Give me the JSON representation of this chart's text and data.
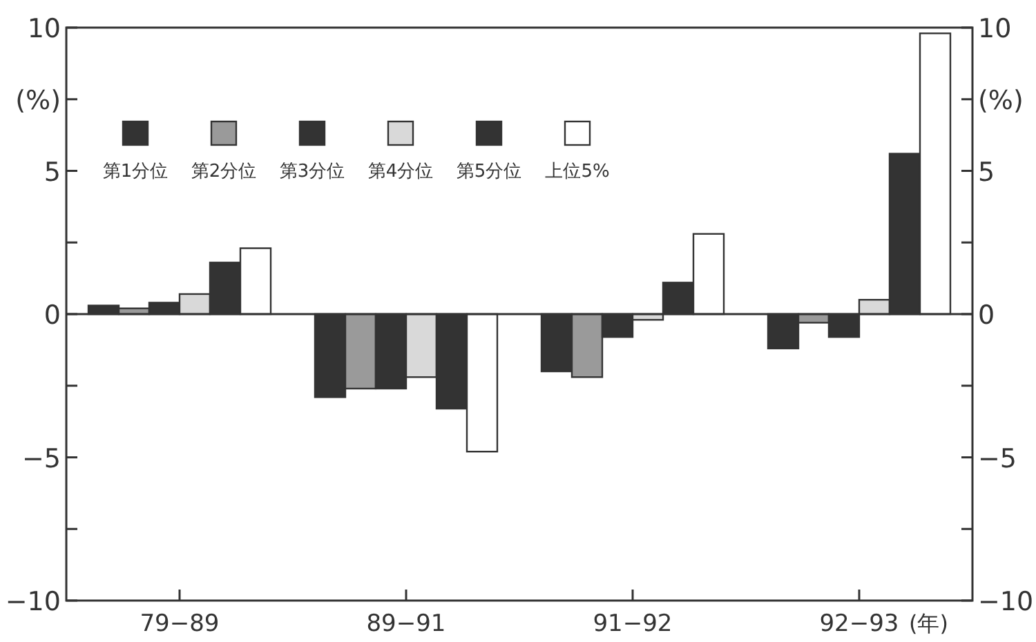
{
  "chart_data": {
    "type": "bar",
    "categories": [
      "79−89",
      "89−91",
      "91−92",
      "92−93"
    ],
    "xlabel": "(年)",
    "series": [
      {
        "name": "第1分位",
        "color": "#333333",
        "values": [
          0.3,
          -2.9,
          -2.0,
          -1.2
        ]
      },
      {
        "name": "第2分位",
        "color": "#9a9a9a",
        "values": [
          0.2,
          -2.6,
          -2.2,
          -0.3
        ]
      },
      {
        "name": "第3分位",
        "color": "#333333",
        "values": [
          0.4,
          -2.6,
          -0.8,
          -0.8
        ]
      },
      {
        "name": "第4分位",
        "color": "#d9d9d9",
        "values": [
          0.7,
          -2.2,
          -0.2,
          0.5
        ]
      },
      {
        "name": "第5分位",
        "color": "#333333",
        "values": [
          1.8,
          -3.3,
          1.1,
          5.6
        ]
      },
      {
        "name": "上位5%",
        "color": "#ffffff",
        "values": [
          2.3,
          -4.8,
          2.8,
          9.8
        ]
      }
    ],
    "ylim": [
      -10,
      10
    ],
    "yticks": [
      10,
      {
        "value": 7.5,
        "label": "(%)"
      },
      5,
      {
        "value": 2.5,
        "label": null
      },
      0,
      {
        "value": -2.5,
        "label": null
      },
      -5,
      {
        "value": -7.5,
        "label": null
      },
      -10
    ],
    "y2lim": [
      -10,
      10
    ],
    "y2ticks": [
      10,
      {
        "value": 7.5,
        "label": "(%)"
      },
      5,
      {
        "value": 2.5,
        "label": null
      },
      0,
      {
        "value": -2.5,
        "label": null
      },
      -5,
      {
        "value": -7.5,
        "label": null
      },
      -10
    ],
    "ref_lines": [
      {
        "axis": "y",
        "value": 0,
        "color": "#333333"
      }
    ],
    "legend": "top left"
  }
}
